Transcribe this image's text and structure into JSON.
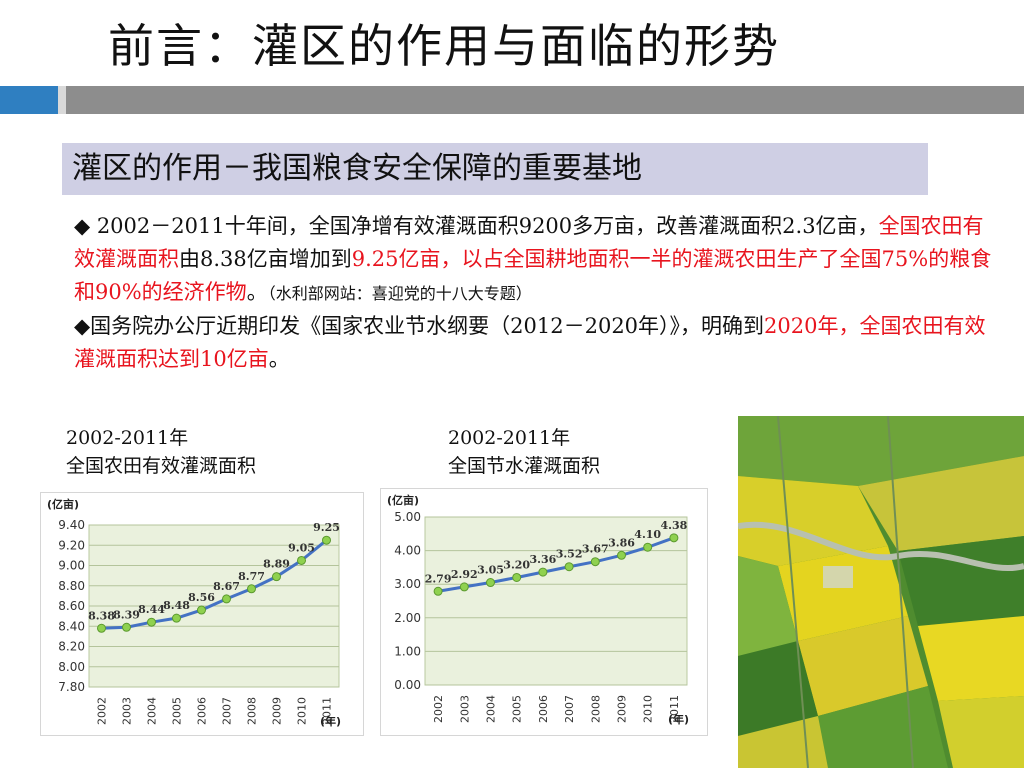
{
  "title": "前言：灌区的作用与面临的形势",
  "subtitle": "灌区的作用－我国粮食安全保障的重要基地",
  "bullets": {
    "b1_a": "◆ 2002－2011十年间，全国净增有效灌溉面积9200多万亩，改善灌溉面积2.3亿亩，",
    "b1_red1": "全国农田有效灌溉面积",
    "b1_b": "由8.38亿亩增加到",
    "b1_red2": "9.25亿亩，以占全国耕地面积一半的灌溉农田生产了全国75%的粮食和90%的经济作物",
    "b1_c": "。",
    "b1_small": "（水利部网站：喜迎党的十八大专题）",
    "b2_a": "◆国务院办公厅近期印发《国家农业节水纲要（2012－2020年）》，明确到",
    "b2_red": "2020年，全国农田有效灌溉面积达到10亿亩",
    "b2_c": "。"
  },
  "chart_captions": [
    {
      "line1": "2002-2011年",
      "line2": "全国农田有效灌溉面积"
    },
    {
      "line1": "2002-2011年",
      "line2": "全国节水灌溉面积"
    }
  ],
  "colors": {
    "accent_blue": "#2f7fc1",
    "series_line": "#4472c4",
    "marker_fill": "#8fd14f",
    "plot_bg": "#eaf1dd"
  },
  "chart_data": [
    {
      "type": "line",
      "title": "2002-2011年 全国农田有效灌溉面积",
      "ylabel": "(亿亩)",
      "xlabel": "(年)",
      "x": [
        "2002",
        "2003",
        "2004",
        "2005",
        "2006",
        "2007",
        "2008",
        "2009",
        "2010",
        "2011"
      ],
      "series": [
        {
          "values": [
            8.38,
            8.39,
            8.44,
            8.48,
            8.56,
            8.67,
            8.77,
            8.89,
            9.05,
            9.25
          ]
        }
      ],
      "yticks": [
        "9.40",
        "9.20",
        "9.00",
        "8.80",
        "8.60",
        "8.40",
        "8.20",
        "8.00",
        "7.80"
      ],
      "ylim": [
        7.8,
        9.4
      ],
      "grid": true
    },
    {
      "type": "line",
      "title": "2002-2011年 全国节水灌溉面积",
      "ylabel": "(亿亩)",
      "xlabel": "(年)",
      "x": [
        "2002",
        "2003",
        "2004",
        "2005",
        "2006",
        "2007",
        "2008",
        "2009",
        "2010",
        "2011"
      ],
      "series": [
        {
          "values": [
            2.79,
            2.92,
            3.05,
            3.2,
            3.36,
            3.52,
            3.67,
            3.86,
            4.1,
            4.38
          ]
        }
      ],
      "yticks": [
        "5.00",
        "4.00",
        "3.00",
        "2.00",
        "1.00",
        "0.00"
      ],
      "ylim": [
        0,
        5
      ],
      "grid": true
    }
  ],
  "photo": {
    "icon": "aerial-farmland-photo"
  }
}
